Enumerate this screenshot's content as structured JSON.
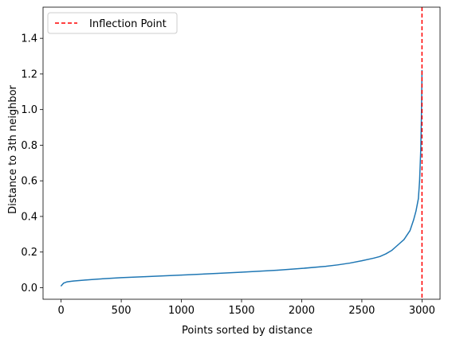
{
  "chart_data": {
    "type": "line",
    "xlabel": "Points sorted by distance",
    "ylabel": "Distance to 3th neighbor",
    "xlim": [
      -150,
      3150
    ],
    "ylim": [
      -0.065,
      1.575
    ],
    "xticks": [
      0,
      500,
      1000,
      1500,
      2000,
      2500,
      3000
    ],
    "yticks": [
      0.0,
      0.2,
      0.4,
      0.6,
      0.8,
      1.0,
      1.2,
      1.4
    ],
    "xtick_labels": [
      "0",
      "500",
      "1000",
      "1500",
      "2000",
      "2500",
      "3000"
    ],
    "ytick_labels": [
      "0.0",
      "0.2",
      "0.4",
      "0.6",
      "0.8",
      "1.0",
      "1.2",
      "1.4"
    ],
    "grid": false,
    "legend_position": "upper-left",
    "series": [
      {
        "color": "#1f77b4",
        "x": [
          0,
          20,
          50,
          100,
          200,
          300,
          500,
          700,
          1000,
          1300,
          1500,
          1800,
          2000,
          2200,
          2300,
          2400,
          2500,
          2600,
          2650,
          2700,
          2750,
          2800,
          2850,
          2900,
          2930,
          2950,
          2970,
          2980,
          2990,
          2995,
          2998,
          3000
        ],
        "y": [
          0.01,
          0.025,
          0.033,
          0.037,
          0.043,
          0.048,
          0.056,
          0.062,
          0.071,
          0.08,
          0.087,
          0.098,
          0.108,
          0.12,
          0.128,
          0.138,
          0.151,
          0.166,
          0.175,
          0.19,
          0.21,
          0.24,
          0.27,
          0.32,
          0.38,
          0.43,
          0.5,
          0.6,
          0.78,
          0.95,
          1.1,
          1.22
        ]
      }
    ],
    "vlines": [
      {
        "x": 3000,
        "label": "Inflection Point",
        "color": "#ff0000",
        "style": "dashed"
      }
    ]
  }
}
